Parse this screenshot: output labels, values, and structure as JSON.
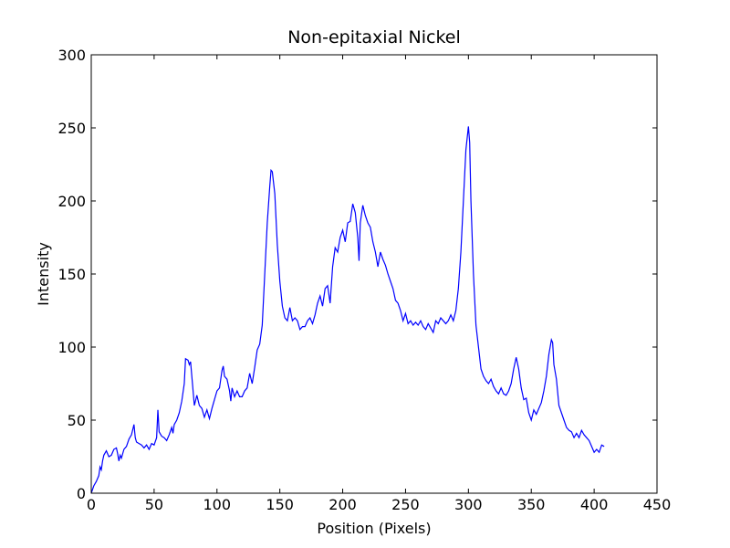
{
  "chart_data": {
    "type": "line",
    "title": "Non-epitaxial Nickel",
    "x_label": "Position (Pixels)",
    "y_label": "Intensity",
    "xlim": [
      0,
      450
    ],
    "xticks": [
      0,
      50,
      100,
      150,
      200,
      250,
      300,
      350,
      400,
      450
    ],
    "ylim": [
      0,
      300
    ],
    "yticks": [
      0,
      50,
      100,
      150,
      200,
      250,
      300
    ],
    "series": [
      {
        "color": "#0000ff",
        "x": [
          0,
          2,
          4,
          6,
          7,
          8,
          9,
          10,
          12,
          14,
          16,
          18,
          20,
          21,
          22,
          23,
          24,
          26,
          28,
          30,
          32,
          34,
          35,
          36,
          38,
          40,
          42,
          44,
          46,
          48,
          50,
          52,
          53,
          54,
          56,
          58,
          60,
          62,
          64,
          65,
          66,
          68,
          70,
          72,
          74,
          75,
          77,
          78,
          79,
          80,
          82,
          84,
          86,
          88,
          90,
          92,
          94,
          96,
          98,
          100,
          102,
          104,
          105,
          106,
          108,
          110,
          111,
          112,
          114,
          116,
          118,
          120,
          122,
          124,
          126,
          128,
          130,
          132,
          134,
          136,
          138,
          140,
          142,
          143,
          144,
          146,
          148,
          150,
          152,
          154,
          156,
          158,
          160,
          162,
          164,
          166,
          168,
          170,
          172,
          174,
          176,
          178,
          180,
          182,
          184,
          186,
          188,
          190,
          192,
          194,
          196,
          198,
          200,
          202,
          204,
          206,
          208,
          210,
          212,
          213,
          214,
          216,
          218,
          220,
          222,
          224,
          226,
          228,
          230,
          232,
          234,
          236,
          238,
          240,
          242,
          244,
          246,
          248,
          250,
          252,
          254,
          256,
          258,
          260,
          262,
          264,
          266,
          268,
          270,
          272,
          274,
          276,
          278,
          280,
          282,
          284,
          286,
          288,
          290,
          292,
          294,
          296,
          298,
          300,
          301,
          302,
          304,
          306,
          308,
          310,
          312,
          314,
          316,
          318,
          320,
          322,
          324,
          326,
          328,
          330,
          332,
          334,
          336,
          338,
          340,
          342,
          344,
          346,
          348,
          350,
          352,
          354,
          356,
          358,
          360,
          362,
          364,
          366,
          367,
          368,
          370,
          372,
          374,
          376,
          378,
          380,
          382,
          384,
          386,
          388,
          390,
          392,
          394,
          396,
          398,
          400,
          402,
          404,
          406,
          408
        ],
        "values": [
          0,
          5,
          8,
          12,
          18,
          16,
          22,
          26,
          29,
          25,
          26,
          30,
          31,
          27,
          22,
          26,
          24,
          30,
          32,
          37,
          40,
          47,
          38,
          35,
          34,
          33,
          31,
          33,
          30,
          34,
          33,
          38,
          57,
          42,
          39,
          38,
          36,
          40,
          45,
          41,
          47,
          50,
          55,
          63,
          75,
          92,
          91,
          88,
          90,
          80,
          60,
          67,
          60,
          58,
          52,
          57,
          51,
          58,
          64,
          70,
          72,
          84,
          87,
          80,
          78,
          70,
          63,
          72,
          66,
          70,
          66,
          66,
          70,
          72,
          82,
          75,
          86,
          98,
          102,
          115,
          150,
          185,
          210,
          221,
          220,
          205,
          170,
          145,
          128,
          120,
          118,
          127,
          118,
          120,
          118,
          112,
          114,
          114,
          118,
          120,
          116,
          122,
          130,
          135,
          128,
          140,
          142,
          130,
          155,
          168,
          165,
          175,
          180,
          172,
          185,
          186,
          198,
          192,
          175,
          159,
          185,
          197,
          190,
          185,
          182,
          172,
          165,
          155,
          165,
          160,
          156,
          150,
          145,
          140,
          132,
          130,
          125,
          118,
          123,
          116,
          118,
          115,
          117,
          115,
          118,
          114,
          112,
          116,
          113,
          110,
          118,
          116,
          120,
          118,
          116,
          118,
          122,
          118,
          125,
          140,
          165,
          200,
          235,
          251,
          240,
          200,
          150,
          115,
          100,
          85,
          80,
          77,
          75,
          78,
          73,
          70,
          68,
          72,
          68,
          67,
          70,
          75,
          85,
          93,
          85,
          72,
          64,
          65,
          55,
          50,
          57,
          54,
          58,
          62,
          70,
          80,
          95,
          105,
          103,
          88,
          78,
          60,
          55,
          50,
          45,
          43,
          42,
          38,
          41,
          38,
          43,
          40,
          38,
          36,
          32,
          28,
          30,
          28,
          33,
          32
        ]
      }
    ]
  }
}
